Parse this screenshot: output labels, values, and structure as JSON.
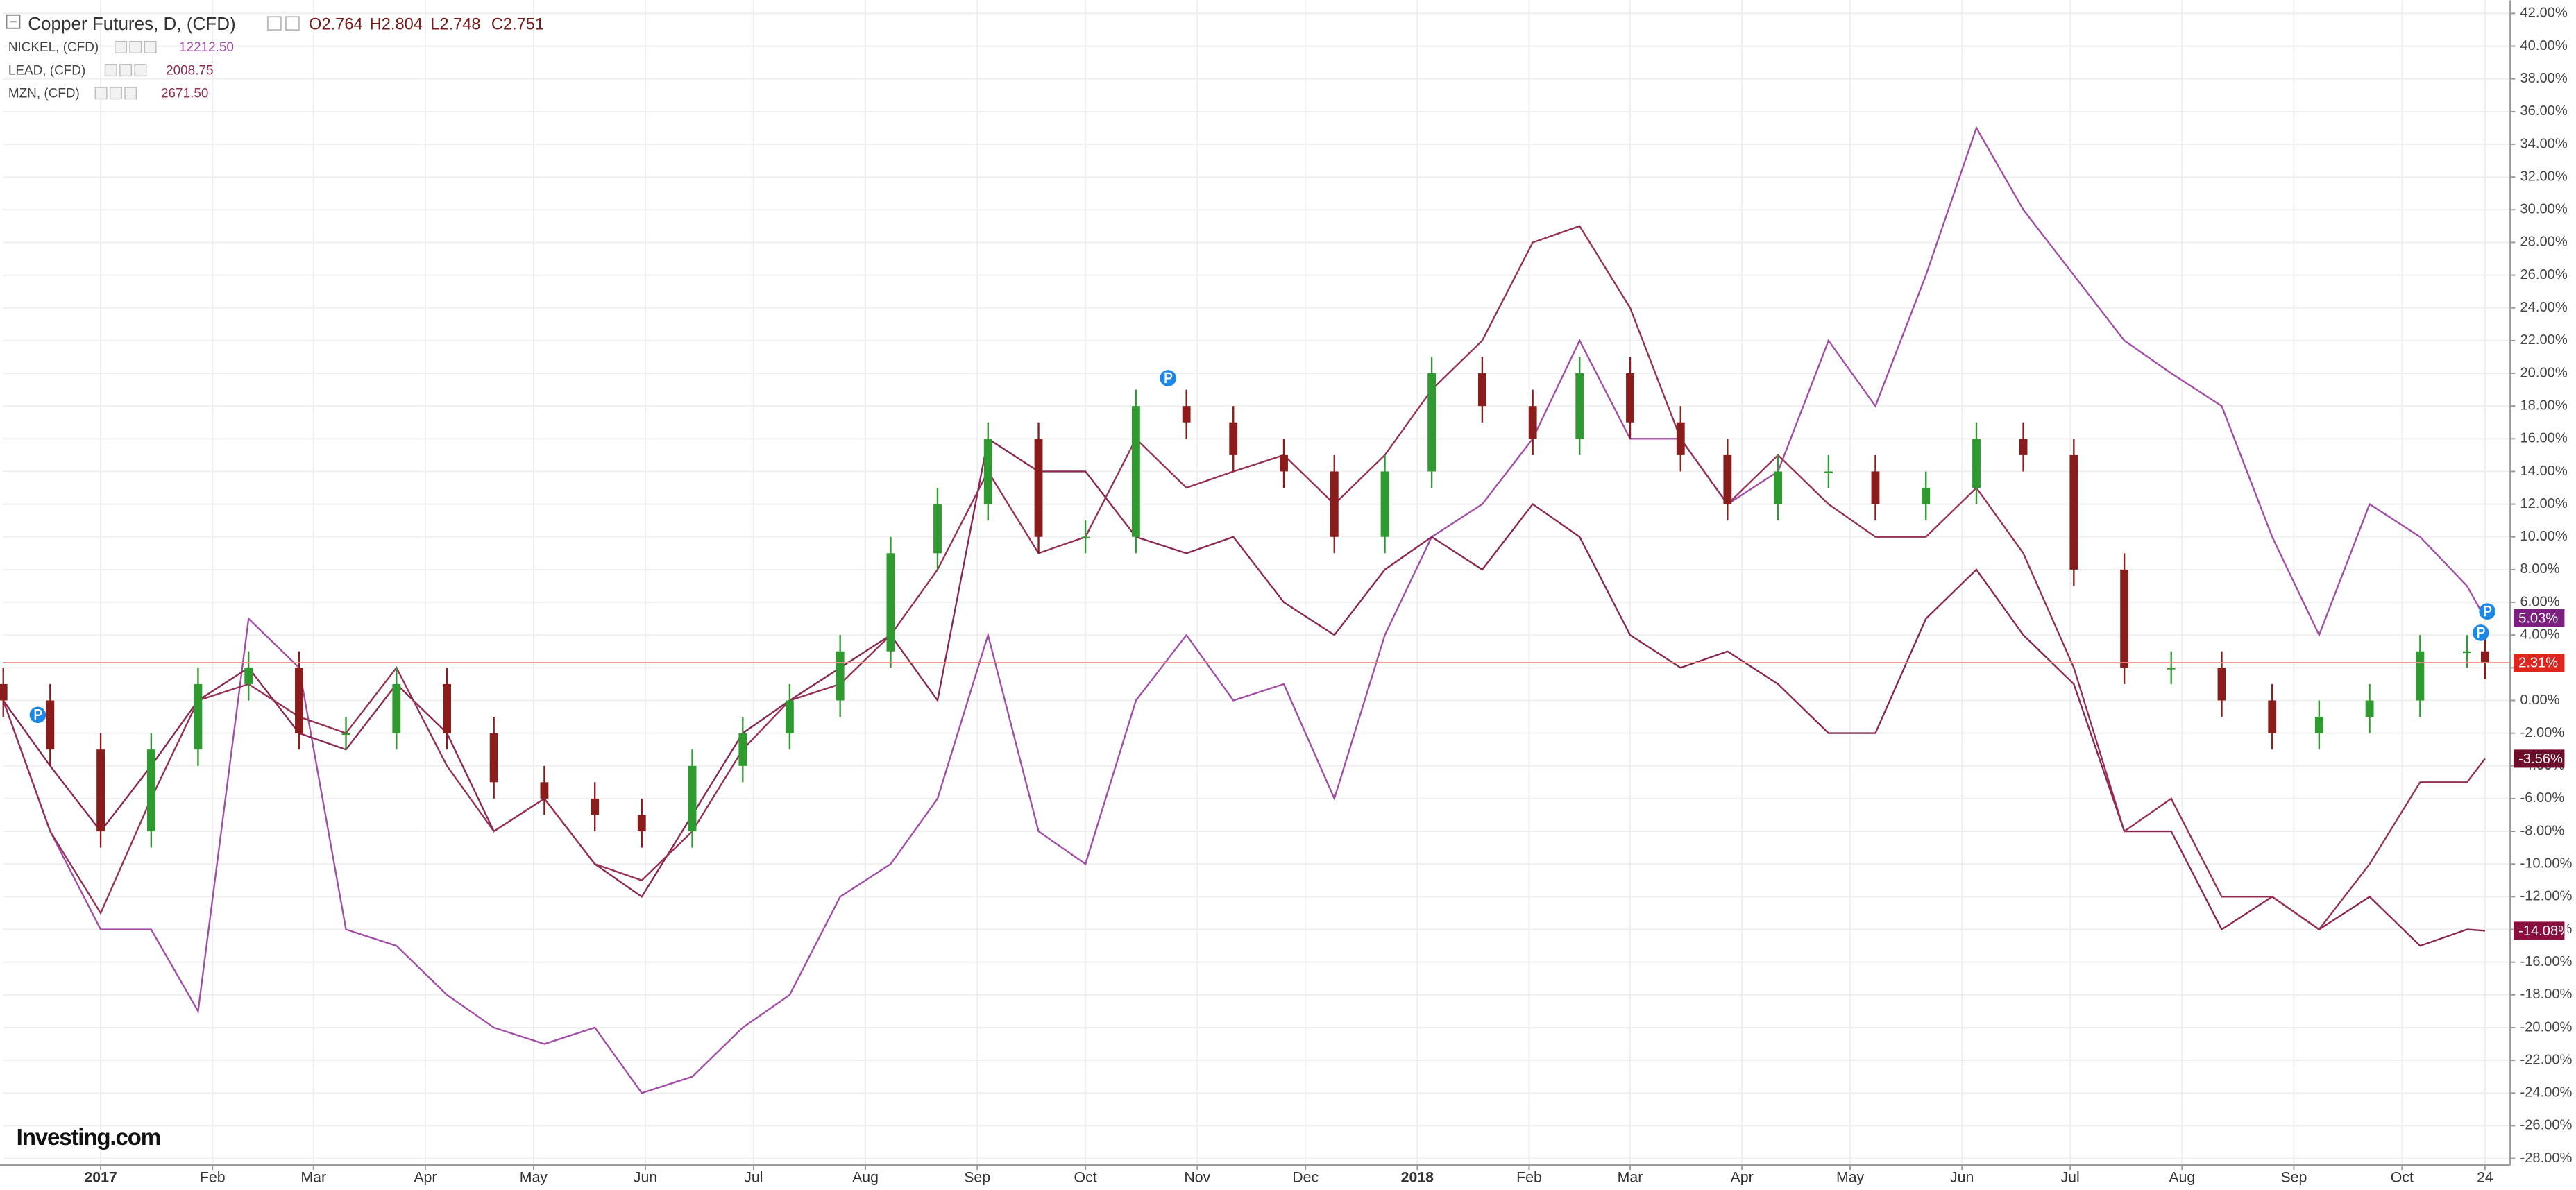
{
  "chart_data": {
    "type": "candlestick-comparison",
    "title": "Copper Futures, D, (CFD)",
    "ohlc_header": [
      "O2.764",
      "H2.804",
      "L2.748",
      "C2.751"
    ],
    "logo": "Investing.com",
    "x": [
      -27,
      -14,
      0,
      14,
      27,
      41,
      55,
      68,
      82,
      96,
      109,
      123,
      137,
      150,
      164,
      178,
      191,
      205,
      219,
      232,
      246,
      260,
      273,
      287,
      301,
      314,
      328,
      342,
      356,
      369,
      383,
      397,
      410,
      424,
      438,
      451,
      465,
      479,
      492,
      506,
      520,
      533,
      547,
      561,
      574,
      588,
      602,
      615,
      629,
      643,
      656,
      661
    ],
    "xlim": [
      -27,
      668
    ],
    "xticks": [
      {
        "value": 0,
        "label": "2017"
      },
      {
        "value": 31,
        "label": "Feb"
      },
      {
        "value": 59,
        "label": "Mar"
      },
      {
        "value": 90,
        "label": "Apr"
      },
      {
        "value": 120,
        "label": "May"
      },
      {
        "value": 151,
        "label": "Jun"
      },
      {
        "value": 181,
        "label": "Jul"
      },
      {
        "value": 212,
        "label": "Aug"
      },
      {
        "value": 243,
        "label": "Sep"
      },
      {
        "value": 273,
        "label": "Oct"
      },
      {
        "value": 304,
        "label": "Nov"
      },
      {
        "value": 334,
        "label": "Dec"
      },
      {
        "value": 365,
        "label": "2018"
      },
      {
        "value": 396,
        "label": "Feb"
      },
      {
        "value": 424,
        "label": "Mar"
      },
      {
        "value": 455,
        "label": "Apr"
      },
      {
        "value": 485,
        "label": "May"
      },
      {
        "value": 516,
        "label": "Jun"
      },
      {
        "value": 546,
        "label": "Jul"
      },
      {
        "value": 577,
        "label": "Aug"
      },
      {
        "value": 608,
        "label": "Sep"
      },
      {
        "value": 638,
        "label": "Oct"
      },
      {
        "value": 661,
        "label": "24"
      }
    ],
    "ylim": [
      -28.4,
      42.8
    ],
    "yticks": [
      {
        "value": -28,
        "label": "-28.00%"
      },
      {
        "value": -26,
        "label": "-26.00%"
      },
      {
        "value": -24,
        "label": "-24.00%"
      },
      {
        "value": -22,
        "label": "-22.00%"
      },
      {
        "value": -20,
        "label": "-20.00%"
      },
      {
        "value": -18,
        "label": "-18.00%"
      },
      {
        "value": -16,
        "label": "-16.00%"
      },
      {
        "value": -14,
        "label": "-14.00%"
      },
      {
        "value": -12,
        "label": "-12.00%"
      },
      {
        "value": -10,
        "label": "-10.00%"
      },
      {
        "value": -8,
        "label": "-8.00%"
      },
      {
        "value": -6,
        "label": "-6.00%"
      },
      {
        "value": -4,
        "label": "-4.00%"
      },
      {
        "value": -2,
        "label": "-2.00%"
      },
      {
        "value": 0,
        "label": "0.00%"
      },
      {
        "value": 2,
        "label": "2.00%"
      },
      {
        "value": 4,
        "label": "4.00%"
      },
      {
        "value": 6,
        "label": "6.00%"
      },
      {
        "value": 8,
        "label": "8.00%"
      },
      {
        "value": 10,
        "label": "10.00%"
      },
      {
        "value": 12,
        "label": "12.00%"
      },
      {
        "value": 14,
        "label": "14.00%"
      },
      {
        "value": 16,
        "label": "16.00%"
      },
      {
        "value": 18,
        "label": "18.00%"
      },
      {
        "value": 20,
        "label": "20.00%"
      },
      {
        "value": 22,
        "label": "22.00%"
      },
      {
        "value": 24,
        "label": "24.00%"
      },
      {
        "value": 26,
        "label": "26.00%"
      },
      {
        "value": 28,
        "label": "28.00%"
      },
      {
        "value": 30,
        "label": "30.00%"
      },
      {
        "value": 32,
        "label": "32.00%"
      },
      {
        "value": 34,
        "label": "34.00%"
      },
      {
        "value": 36,
        "label": "36.00%"
      },
      {
        "value": 38,
        "label": "38.00%"
      },
      {
        "value": 40,
        "label": "40.00%"
      },
      {
        "value": 42,
        "label": "42.00%"
      }
    ],
    "grid": true,
    "candles": {
      "up_color": "#2f9a2f",
      "down_color": "#8b1c1c",
      "line_color": "#f08a8a",
      "label_color": "#e0251f",
      "end_value": 2.31,
      "end_label": "2.31%",
      "open": [
        1,
        0,
        -3,
        -8,
        -3,
        1,
        2,
        -2,
        -2,
        1,
        -2,
        -5,
        -6,
        -7,
        -8,
        -4,
        -2,
        0,
        3,
        9,
        12,
        16,
        10,
        10,
        18,
        17,
        15,
        14,
        10,
        14,
        20,
        18,
        16,
        20,
        17,
        15,
        12,
        14,
        14,
        12,
        13,
        16,
        15,
        8,
        2,
        2,
        0,
        -2,
        -1,
        0,
        3,
        3
      ],
      "high": [
        2,
        1,
        -2,
        -2,
        2,
        3,
        3,
        -1,
        2,
        2,
        -1,
        -4,
        -5,
        -6,
        -3,
        -1,
        1,
        4,
        10,
        13,
        17,
        17,
        11,
        19,
        19,
        18,
        16,
        15,
        15,
        21,
        21,
        19,
        21,
        21,
        18,
        16,
        15,
        15,
        15,
        14,
        17,
        17,
        16,
        9,
        3,
        3,
        1,
        0,
        1,
        4,
        4,
        4
      ],
      "low": [
        -1,
        -4,
        -9,
        -9,
        -4,
        0,
        -3,
        -3,
        -3,
        -3,
        -6,
        -7,
        -8,
        -9,
        -9,
        -5,
        -3,
        -1,
        2,
        8,
        11,
        9,
        9,
        9,
        16,
        14,
        13,
        9,
        9,
        13,
        17,
        15,
        15,
        16,
        14,
        11,
        11,
        13,
        11,
        11,
        12,
        14,
        7,
        1,
        1,
        -1,
        -3,
        -3,
        -2,
        -1,
        2,
        1.31
      ],
      "close": [
        0,
        -3,
        -8,
        -3,
        1,
        2,
        -2,
        -2,
        1,
        -2,
        -5,
        -6,
        -7,
        -8,
        -4,
        -2,
        0,
        3,
        9,
        12,
        16,
        10,
        10,
        18,
        17,
        15,
        14,
        10,
        14,
        20,
        18,
        16,
        20,
        17,
        15,
        12,
        14,
        14,
        12,
        13,
        16,
        15,
        8,
        2,
        2,
        0,
        -2,
        -1,
        0,
        3,
        3,
        2.31
      ]
    },
    "series": [
      {
        "name": "NICKEL, (CFD)",
        "price": "12212.50",
        "color": "#a24da6",
        "label_color": "#7c1f80",
        "end_label": "5.03%",
        "values": [
          0,
          -8,
          -14,
          -14,
          -19,
          5,
          2,
          -14,
          -15,
          -18,
          -20,
          -21,
          -20,
          -24,
          -23,
          -20,
          -18,
          -12,
          -10,
          -6,
          4,
          -8,
          -10,
          0,
          4,
          0,
          1,
          -6,
          4,
          10,
          12,
          16,
          22,
          16,
          16,
          12,
          14,
          22,
          18,
          26,
          35,
          30,
          26,
          22,
          20,
          18,
          10,
          4,
          12,
          10,
          7,
          5.03
        ]
      },
      {
        "name": "LEAD, (CFD)",
        "price": "2008.75",
        "color": "#8a2752",
        "label_color": "#8a0f3e",
        "end_label": "-14.08%",
        "values": [
          0,
          -4,
          -8,
          -4,
          0,
          2,
          -2,
          -3,
          1,
          -2,
          -8,
          -6,
          -10,
          -12,
          -7,
          -2,
          0,
          2,
          4,
          0,
          16,
          14,
          14,
          10,
          9,
          10,
          6,
          4,
          8,
          10,
          8,
          12,
          10,
          4,
          2,
          3,
          1,
          -2,
          -2,
          5,
          8,
          4,
          1,
          -8,
          -8,
          -14,
          -12,
          -14,
          -12,
          -15,
          -14,
          -14.08
        ]
      },
      {
        "name": "MZN, (CFD)",
        "price": "2671.50",
        "color": "#963057",
        "label_color": "#6e0d2a",
        "end_label": "-3.56%",
        "values": [
          0,
          -8,
          -13,
          -6,
          0,
          1,
          -1,
          -2,
          2,
          -4,
          -8,
          -6,
          -10,
          -11,
          -8,
          -3,
          0,
          1,
          4,
          8,
          14,
          9,
          10,
          16,
          13,
          14,
          15,
          12,
          15,
          19,
          22,
          28,
          29,
          24,
          16,
          12,
          15,
          12,
          10,
          10,
          13,
          9,
          2,
          -8,
          -6,
          -12,
          -12,
          -14,
          -10,
          -5,
          -5,
          -3.56
        ]
      }
    ]
  }
}
